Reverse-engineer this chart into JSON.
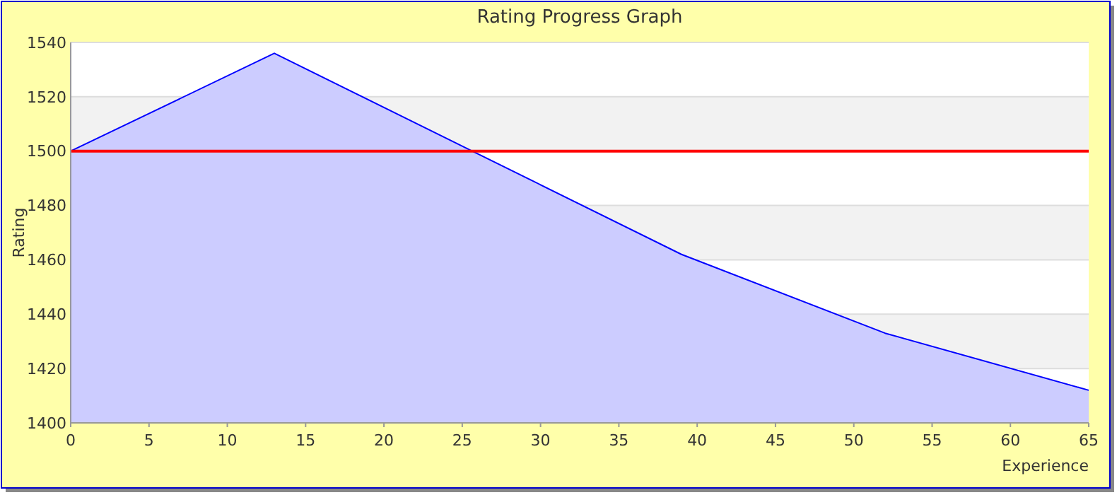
{
  "chart_data": {
    "type": "area",
    "title": "Rating Progress Graph",
    "xlabel": "Experience",
    "ylabel": "Rating",
    "x": [
      0,
      13,
      26,
      39,
      52,
      65
    ],
    "series": [
      {
        "color": "#0000ff",
        "values": [
          1500,
          1536,
          1499,
          1462,
          1433,
          1412
        ]
      }
    ],
    "xlim": [
      0,
      65
    ],
    "xticks": [
      0,
      5,
      10,
      15,
      20,
      25,
      30,
      35,
      40,
      45,
      50,
      55,
      60,
      65
    ],
    "ylim": [
      1400,
      1540
    ],
    "yticks": [
      1400,
      1420,
      1440,
      1460,
      1480,
      1500,
      1520,
      1540
    ],
    "grid": "y",
    "ref_lines": [
      {
        "axis": "y",
        "value": 1500,
        "color": "#ff0000"
      }
    ]
  }
}
